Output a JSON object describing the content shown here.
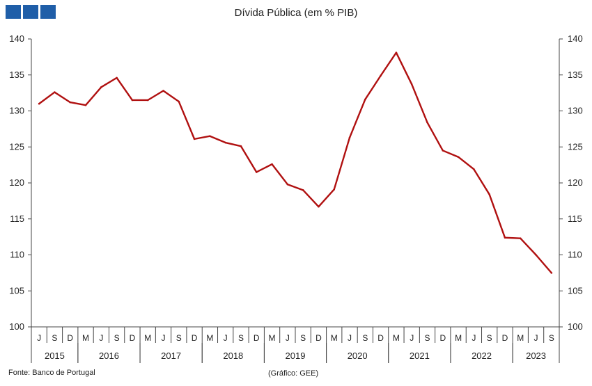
{
  "chart_data": {
    "type": "line",
    "title": "Dívida Pública (em % PIB)",
    "ylim": [
      100,
      140
    ],
    "yticks": [
      100,
      105,
      110,
      115,
      120,
      125,
      130,
      135,
      140
    ],
    "month_labels": [
      "J",
      "S",
      "D",
      "M",
      "J",
      "S",
      "D",
      "M",
      "J",
      "S",
      "D",
      "M",
      "J",
      "S",
      "D",
      "M",
      "J",
      "S",
      "D",
      "M",
      "J",
      "S",
      "D",
      "M",
      "J",
      "S",
      "D",
      "M",
      "J",
      "S",
      "D",
      "M",
      "J",
      "S"
    ],
    "years": [
      {
        "label": "2015",
        "start": 0,
        "count": 3
      },
      {
        "label": "2016",
        "start": 3,
        "count": 4
      },
      {
        "label": "2017",
        "start": 7,
        "count": 4
      },
      {
        "label": "2018",
        "start": 11,
        "count": 4
      },
      {
        "label": "2019",
        "start": 15,
        "count": 4
      },
      {
        "label": "2020",
        "start": 19,
        "count": 4
      },
      {
        "label": "2021",
        "start": 23,
        "count": 4
      },
      {
        "label": "2022",
        "start": 27,
        "count": 4
      },
      {
        "label": "2023",
        "start": 31,
        "count": 3
      }
    ],
    "series": [
      {
        "color": "#b01010",
        "values": [
          131.0,
          132.6,
          131.2,
          130.8,
          133.3,
          134.6,
          131.5,
          131.5,
          132.8,
          131.3,
          126.1,
          126.5,
          125.6,
          125.1,
          121.5,
          122.6,
          119.8,
          119.0,
          116.7,
          119.1,
          126.3,
          131.6,
          134.9,
          138.1,
          133.7,
          128.4,
          124.5,
          123.6,
          121.9,
          118.4,
          112.4,
          112.3,
          110.0,
          107.5
        ]
      }
    ]
  },
  "footer": {
    "source": "Fonte: Banco de Portugal",
    "credit": "(Gráfico: GEE)"
  }
}
